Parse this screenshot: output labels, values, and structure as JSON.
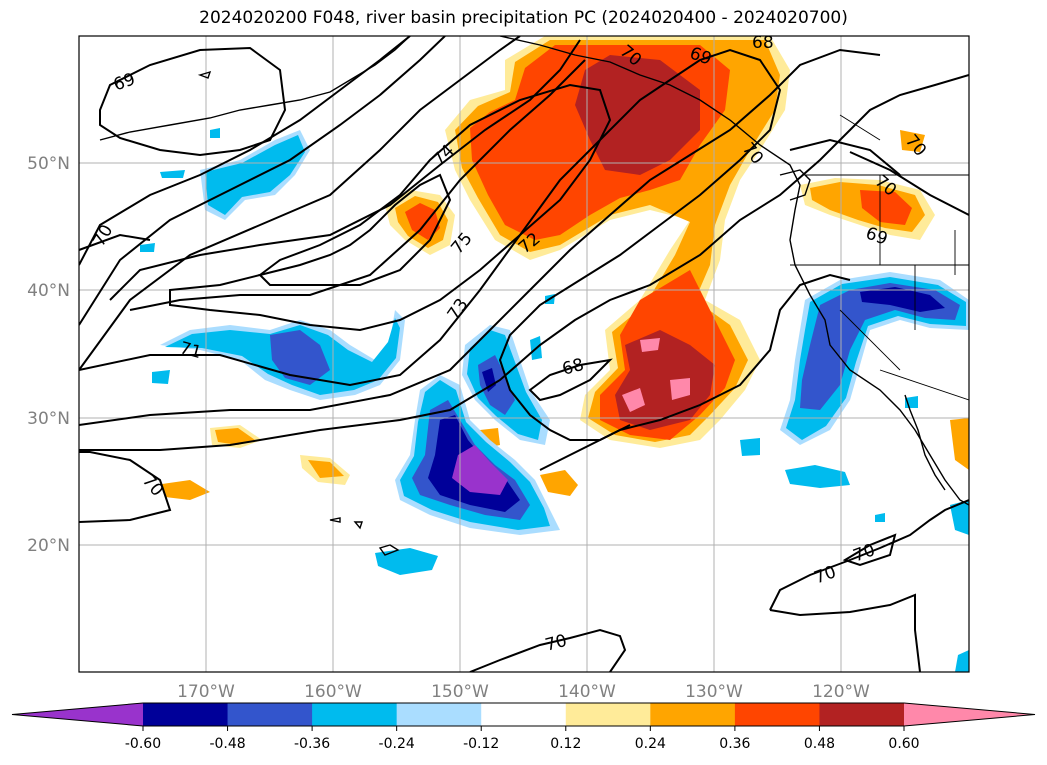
{
  "title": "2024020200 F048, river basin precipitation PC (2024020400 - 2024020700)",
  "map": {
    "lat_ticks": [
      "50°N",
      "40°N",
      "30°N",
      "20°N"
    ],
    "lon_ticks": [
      "170°W",
      "160°W",
      "150°W",
      "140°W",
      "130°W",
      "120°W"
    ],
    "contour_labels": [
      "69",
      "69",
      "69",
      "70",
      "70",
      "70",
      "70",
      "70",
      "70",
      "70",
      "71",
      "72",
      "73",
      "74",
      "75",
      "68",
      "68",
      "70",
      "70"
    ]
  },
  "colorbar": {
    "levels": [
      "-0.60",
      "-0.48",
      "-0.36",
      "-0.24",
      "-0.12",
      "0.12",
      "0.24",
      "0.36",
      "0.48",
      "0.60"
    ],
    "colors": [
      "#9933cc",
      "#000099",
      "#3355cc",
      "#00bbee",
      "#aaddff",
      "#ffffff",
      "#ffeb99",
      "#ffa500",
      "#ff4500",
      "#b22222",
      "#ff88aa"
    ]
  }
}
